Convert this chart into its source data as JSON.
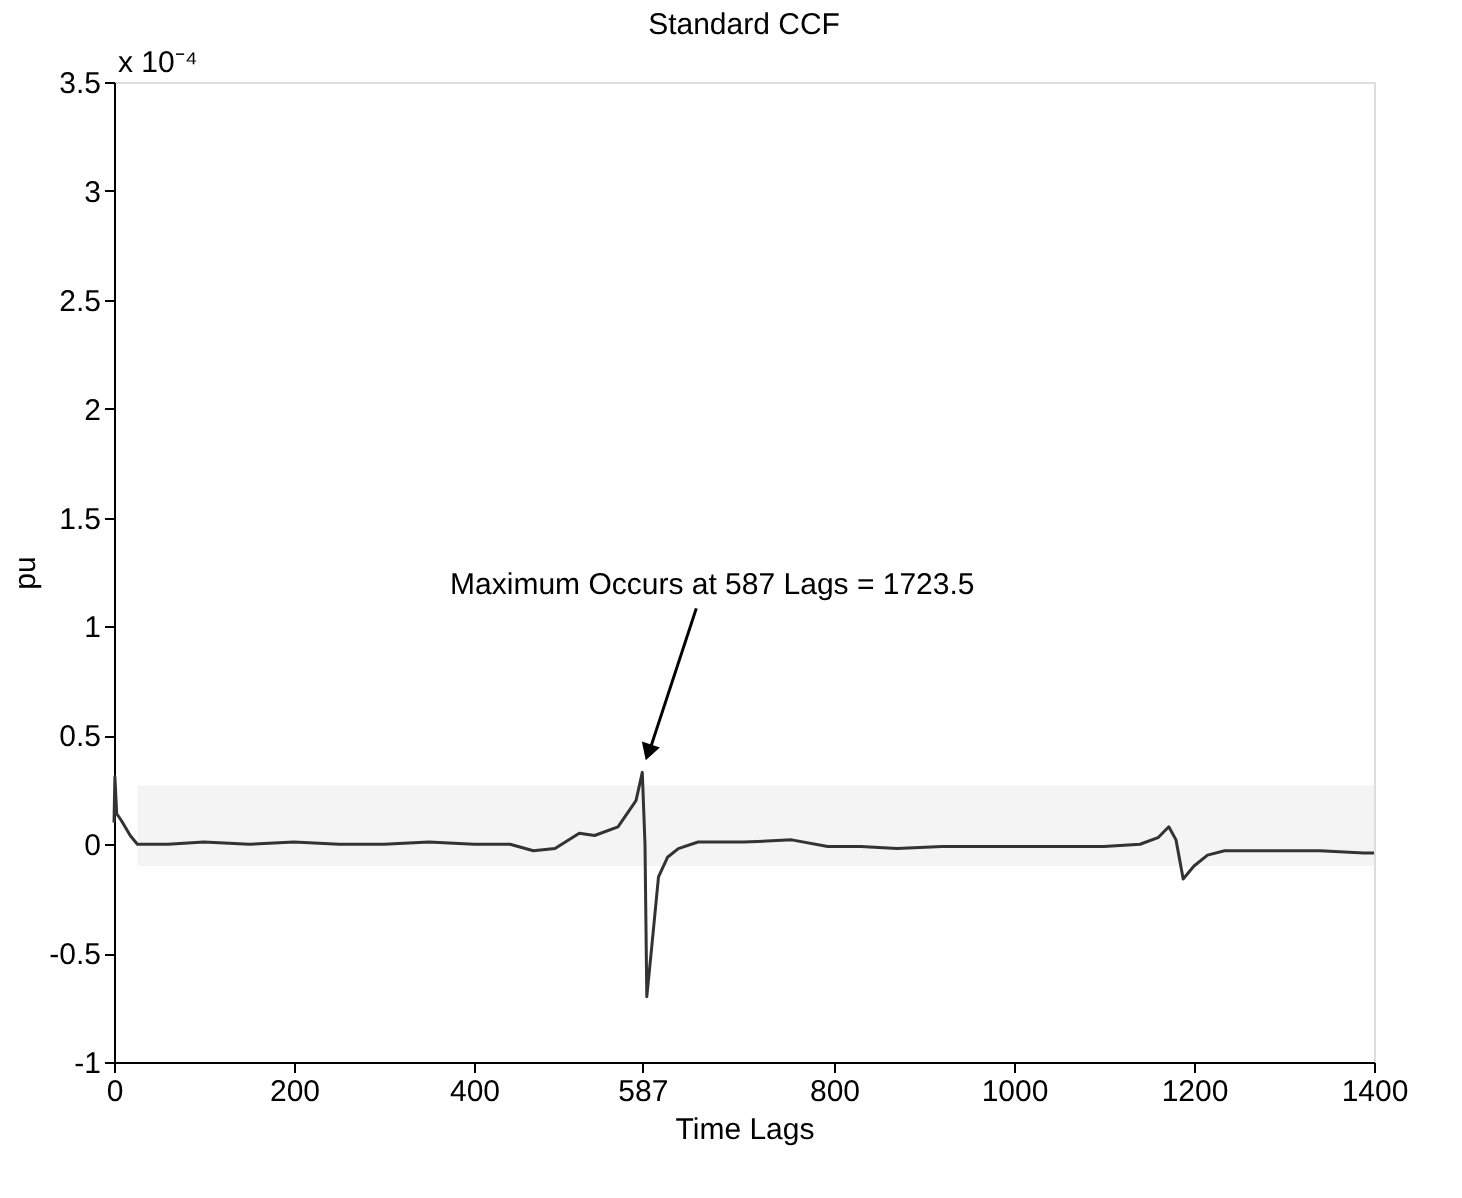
{
  "chart_data": {
    "type": "line",
    "title": "Standard CCF",
    "xlabel": "Time Lags",
    "ylabel": "pu",
    "x": [
      0,
      1,
      3,
      8,
      18,
      26,
      60,
      100,
      150,
      200,
      250,
      300,
      350,
      400,
      440,
      466,
      490,
      517,
      534,
      560,
      580,
      587,
      590,
      592,
      598,
      605,
      615,
      627,
      649,
      700,
      753,
      793,
      830,
      870,
      920,
      980,
      1040,
      1100,
      1140,
      1160,
      1172,
      1180,
      1188,
      1200,
      1215,
      1234,
      1280,
      1340,
      1389,
      1400
    ],
    "series": [
      {
        "color": "#333333",
        "values": [
          0.1,
          0.31,
          0.14,
          0.11,
          0.04,
          0.0,
          0.0,
          0.01,
          0.0,
          0.01,
          0.0,
          0.0,
          0.01,
          0.0,
          0.0,
          -0.03,
          -0.02,
          0.05,
          0.04,
          0.08,
          0.2,
          0.33,
          0.0,
          -0.7,
          -0.45,
          -0.15,
          -0.06,
          -0.02,
          0.01,
          0.01,
          0.02,
          -0.01,
          -0.01,
          -0.02,
          -0.01,
          -0.01,
          -0.01,
          -0.01,
          0.0,
          0.03,
          0.08,
          0.02,
          -0.16,
          -0.1,
          -0.05,
          -0.03,
          -0.03,
          -0.03,
          -0.04,
          -0.04
        ]
      }
    ],
    "xlim": [
      0,
      1400
    ],
    "xticks": [
      0,
      200,
      400,
      587,
      800,
      1000,
      1200,
      1400
    ],
    "ylim": [
      -1,
      3.5
    ],
    "yticks": [
      -1,
      -0.5,
      0,
      0.5,
      1,
      1.5,
      2,
      2.5,
      3,
      3.5
    ],
    "bands": [
      {
        "axis": "y",
        "from": -0.1,
        "to": 0.27,
        "color": "#f4f4f4"
      }
    ],
    "annotations": [
      "x 10⁻⁴",
      "Maximum Occurs at 587 Lags = 1723.5"
    ],
    "grid": false,
    "marker": "none",
    "line_style": "solid"
  }
}
